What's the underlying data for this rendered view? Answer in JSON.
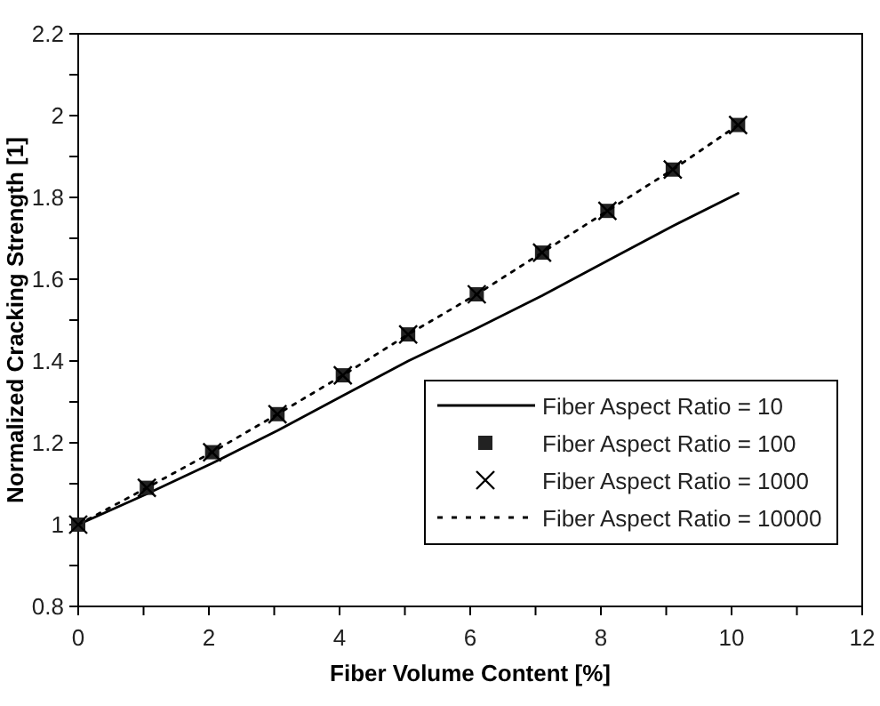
{
  "chart_data": {
    "type": "line",
    "xlabel": "Fiber Volume Content [%]",
    "ylabel": "Normalized Cracking Strength [1]",
    "x": [
      0,
      1.05,
      2.05,
      3.05,
      4.05,
      5.05,
      6.1,
      7.1,
      8.1,
      9.1,
      10.1
    ],
    "series": [
      {
        "name": "Fiber Aspect Ratio = 10",
        "color": "#000000",
        "line_style": "solid",
        "values": [
          1,
          1.075,
          1.15,
          1.23,
          1.315,
          1.4,
          1.48,
          1.56,
          1.645,
          1.73,
          1.81
        ]
      },
      {
        "name": "Fiber Aspect Ratio = 100",
        "type": "scatter",
        "marker": "square",
        "color": "#222222",
        "values": [
          1,
          1.09,
          1.177,
          1.27,
          1.365,
          1.465,
          1.563,
          1.665,
          1.767,
          1.868,
          1.977
        ]
      },
      {
        "name": "Fiber Aspect Ratio = 1000",
        "type": "scatter",
        "marker": "cross",
        "color": "#000000",
        "values": [
          1,
          1.09,
          1.177,
          1.27,
          1.365,
          1.465,
          1.563,
          1.665,
          1.767,
          1.868,
          1.977
        ]
      },
      {
        "name": "Fiber Aspect Ratio = 10000",
        "color": "#000000",
        "line_style": "dotted",
        "values": [
          1,
          1.09,
          1.177,
          1.27,
          1.365,
          1.465,
          1.563,
          1.665,
          1.767,
          1.868,
          1.977
        ]
      }
    ],
    "xlim": [
      0,
      12
    ],
    "xticks": [
      0,
      {
        "value": 1,
        "label": null
      },
      2,
      {
        "value": 3,
        "label": null
      },
      4,
      {
        "value": 5,
        "label": null
      },
      6,
      {
        "value": 7,
        "label": null
      },
      8,
      {
        "value": 9,
        "label": null
      },
      10,
      {
        "value": 11,
        "label": null
      },
      12
    ],
    "ylim": [
      0.8,
      2.2
    ],
    "yticks": [
      0.8,
      {
        "value": 0.9,
        "label": null
      },
      1,
      {
        "value": 1.1,
        "label": null
      },
      1.2,
      {
        "value": 1.3,
        "label": null
      },
      1.4,
      {
        "value": 1.5,
        "label": null
      },
      1.6,
      {
        "value": 1.7,
        "label": null
      },
      1.8,
      {
        "value": 1.9,
        "label": null
      },
      2,
      {
        "value": 2.1,
        "label": null
      },
      2.2
    ],
    "grid": false,
    "legend": "bottom right"
  }
}
